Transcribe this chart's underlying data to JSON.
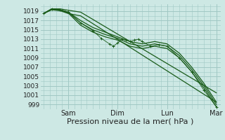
{
  "bg_color": "#cde8e4",
  "grid_color": "#a0c8c4",
  "line_color": "#1a5c1a",
  "ylabel_ticks": [
    999,
    1001,
    1003,
    1005,
    1007,
    1009,
    1011,
    1013,
    1015,
    1017,
    1019
  ],
  "ylim": [
    998.0,
    1020.5
  ],
  "xlim": [
    -3,
    172
  ],
  "xlabel": "Pression niveau de la mer( hPa )",
  "day_labels": [
    "Sam",
    "Dim",
    "Lun",
    "Mar"
  ],
  "day_positions": [
    24,
    72,
    120,
    168
  ],
  "tick_fontsize": 6.5,
  "xlabel_fontsize": 8,
  "smooth_lines": [
    {
      "x": [
        0,
        8,
        16,
        24,
        36,
        48,
        60,
        72,
        84,
        96,
        108,
        120,
        132,
        144,
        156,
        168
      ],
      "y": [
        1018.5,
        1019.5,
        1019.3,
        1018.8,
        1017.0,
        1015.5,
        1014.5,
        1013.5,
        1012.5,
        1012.0,
        1012.5,
        1012.0,
        1010.0,
        1007.0,
        1003.5,
        999.5
      ]
    },
    {
      "x": [
        0,
        8,
        16,
        24,
        36,
        48,
        60,
        72,
        84,
        96,
        108,
        120,
        132,
        144,
        156,
        168
      ],
      "y": [
        1018.5,
        1019.5,
        1019.3,
        1018.8,
        1016.5,
        1015.0,
        1014.0,
        1013.2,
        1012.0,
        1011.5,
        1012.0,
        1011.5,
        1009.5,
        1006.5,
        1003.0,
        999.0
      ]
    },
    {
      "x": [
        0,
        8,
        16,
        24,
        36,
        48,
        60,
        72,
        84,
        96,
        108,
        120,
        132,
        144,
        156,
        168
      ],
      "y": [
        1018.5,
        1019.4,
        1019.2,
        1018.6,
        1016.0,
        1014.5,
        1013.5,
        1012.8,
        1011.5,
        1011.0,
        1011.5,
        1011.0,
        1009.0,
        1006.0,
        1002.5,
        998.5
      ]
    },
    {
      "x": [
        0,
        8,
        16,
        24,
        36,
        168
      ],
      "y": [
        1018.5,
        1019.5,
        1019.5,
        1019.2,
        1018.8,
        1001.5
      ]
    },
    {
      "x": [
        0,
        8,
        16,
        24,
        36,
        168
      ],
      "y": [
        1018.5,
        1019.3,
        1019.1,
        1018.5,
        1018.0,
        999.5
      ]
    }
  ],
  "dotted_line": {
    "x": [
      0,
      8,
      16,
      24,
      36,
      48,
      56,
      64,
      68,
      72,
      76,
      80,
      84,
      88,
      92,
      96,
      104,
      112,
      120,
      132,
      144,
      156,
      168
    ],
    "y": [
      1018.5,
      1019.5,
      1019.3,
      1018.8,
      1016.5,
      1014.8,
      1013.2,
      1012.0,
      1011.5,
      1012.2,
      1013.0,
      1012.8,
      1012.5,
      1012.8,
      1013.0,
      1012.5,
      1011.5,
      1011.8,
      1011.5,
      1009.0,
      1006.0,
      1002.0,
      998.5
    ]
  }
}
